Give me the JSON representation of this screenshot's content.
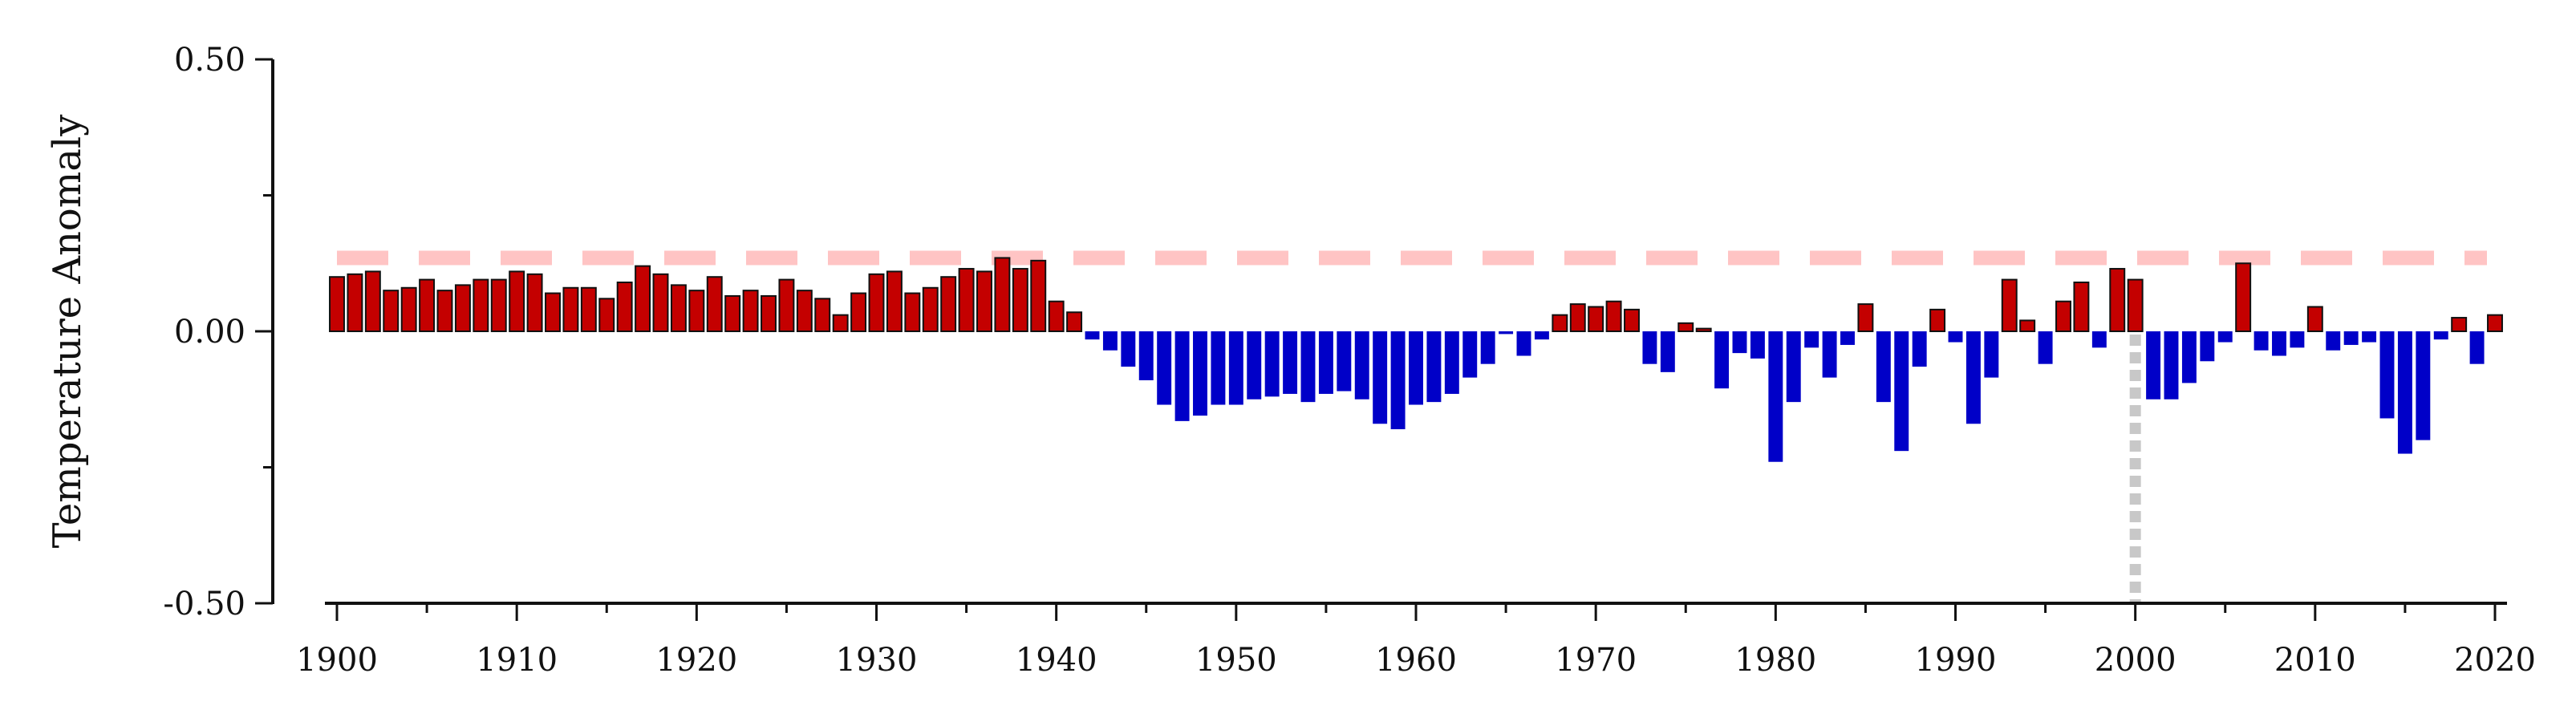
{
  "chart_data": {
    "type": "bar",
    "title": "",
    "xlabel": "",
    "ylabel": "Temperature Anomaly",
    "xlim": [
      1899,
      2021
    ],
    "ylim": [
      -0.5,
      0.5
    ],
    "grid": false,
    "legend": "none",
    "x_ticks": [
      1900,
      1910,
      1920,
      1930,
      1940,
      1950,
      1960,
      1970,
      1980,
      1990,
      2000,
      2010,
      2020
    ],
    "x_tick_labels": [
      "1900",
      "1910",
      "1920",
      "1930",
      "1940",
      "1950",
      "1960",
      "1970",
      "1980",
      "1990",
      "2000",
      "2010",
      "2020"
    ],
    "y_ticks": [
      -0.5,
      0.0,
      0.5
    ],
    "y_tick_labels": [
      "-0.50",
      "0.00",
      "0.50"
    ],
    "y_minor_ticks": [
      -0.25,
      0.25
    ],
    "reference_line": {
      "orientation": "horizontal",
      "y": 0.135,
      "style": "dashed",
      "color": "#ffc4c4"
    },
    "marker_line": {
      "orientation": "vertical",
      "x": 2000,
      "y_from": 0.0,
      "y_to": -0.5,
      "style": "dotted",
      "color": "#c8c8c8"
    },
    "colors": {
      "positive": "#c40000",
      "negative": "#0000c8",
      "outline": "#111111"
    },
    "years": [
      1900,
      1901,
      1902,
      1903,
      1904,
      1905,
      1906,
      1907,
      1908,
      1909,
      1910,
      1911,
      1912,
      1913,
      1914,
      1915,
      1916,
      1917,
      1918,
      1919,
      1920,
      1921,
      1922,
      1923,
      1924,
      1925,
      1926,
      1927,
      1928,
      1929,
      1930,
      1931,
      1932,
      1933,
      1934,
      1935,
      1936,
      1937,
      1938,
      1939,
      1940,
      1941,
      1942,
      1943,
      1944,
      1945,
      1946,
      1947,
      1948,
      1949,
      1950,
      1951,
      1952,
      1953,
      1954,
      1955,
      1956,
      1957,
      1958,
      1959,
      1960,
      1961,
      1962,
      1963,
      1964,
      1965,
      1966,
      1967,
      1968,
      1969,
      1970,
      1971,
      1972,
      1973,
      1974,
      1975,
      1976,
      1977,
      1978,
      1979,
      1980,
      1981,
      1982,
      1983,
      1984,
      1985,
      1986,
      1987,
      1988,
      1989,
      1990,
      1991,
      1992,
      1993,
      1994,
      1995,
      1996,
      1997,
      1998,
      1999,
      2000,
      2001,
      2002,
      2003,
      2004,
      2005,
      2006,
      2007,
      2008,
      2009,
      2010,
      2011,
      2012,
      2013,
      2014,
      2015,
      2016,
      2017,
      2018,
      2019,
      2020
    ],
    "values": [
      0.1,
      0.105,
      0.11,
      0.075,
      0.08,
      0.095,
      0.075,
      0.085,
      0.095,
      0.095,
      0.11,
      0.105,
      0.07,
      0.08,
      0.08,
      0.06,
      0.09,
      0.12,
      0.105,
      0.085,
      0.075,
      0.1,
      0.065,
      0.075,
      0.065,
      0.095,
      0.075,
      0.06,
      0.03,
      0.07,
      0.105,
      0.11,
      0.07,
      0.08,
      0.1,
      0.115,
      0.11,
      0.135,
      0.115,
      0.13,
      0.055,
      0.035,
      -0.015,
      -0.035,
      -0.065,
      -0.09,
      -0.135,
      -0.165,
      -0.155,
      -0.135,
      -0.135,
      -0.125,
      -0.12,
      -0.115,
      -0.13,
      -0.115,
      -0.11,
      -0.125,
      -0.17,
      -0.18,
      -0.135,
      -0.13,
      -0.115,
      -0.085,
      -0.06,
      -0.005,
      -0.045,
      -0.015,
      0.03,
      0.05,
      0.045,
      0.055,
      0.04,
      -0.06,
      -0.075,
      0.015,
      0.005,
      -0.105,
      -0.04,
      -0.05,
      -0.24,
      -0.13,
      -0.03,
      -0.085,
      -0.025,
      0.05,
      -0.13,
      -0.22,
      -0.065,
      0.04,
      -0.02,
      -0.17,
      -0.085,
      0.095,
      0.02,
      -0.06,
      0.055,
      0.09,
      -0.03,
      0.115,
      0.095,
      -0.125,
      -0.125,
      -0.095,
      -0.055,
      -0.02,
      0.125,
      -0.035,
      -0.045,
      -0.03,
      0.045,
      -0.035,
      -0.025,
      -0.02,
      -0.16,
      -0.225,
      -0.2,
      -0.015,
      0.025,
      -0.06,
      0.03
    ]
  }
}
